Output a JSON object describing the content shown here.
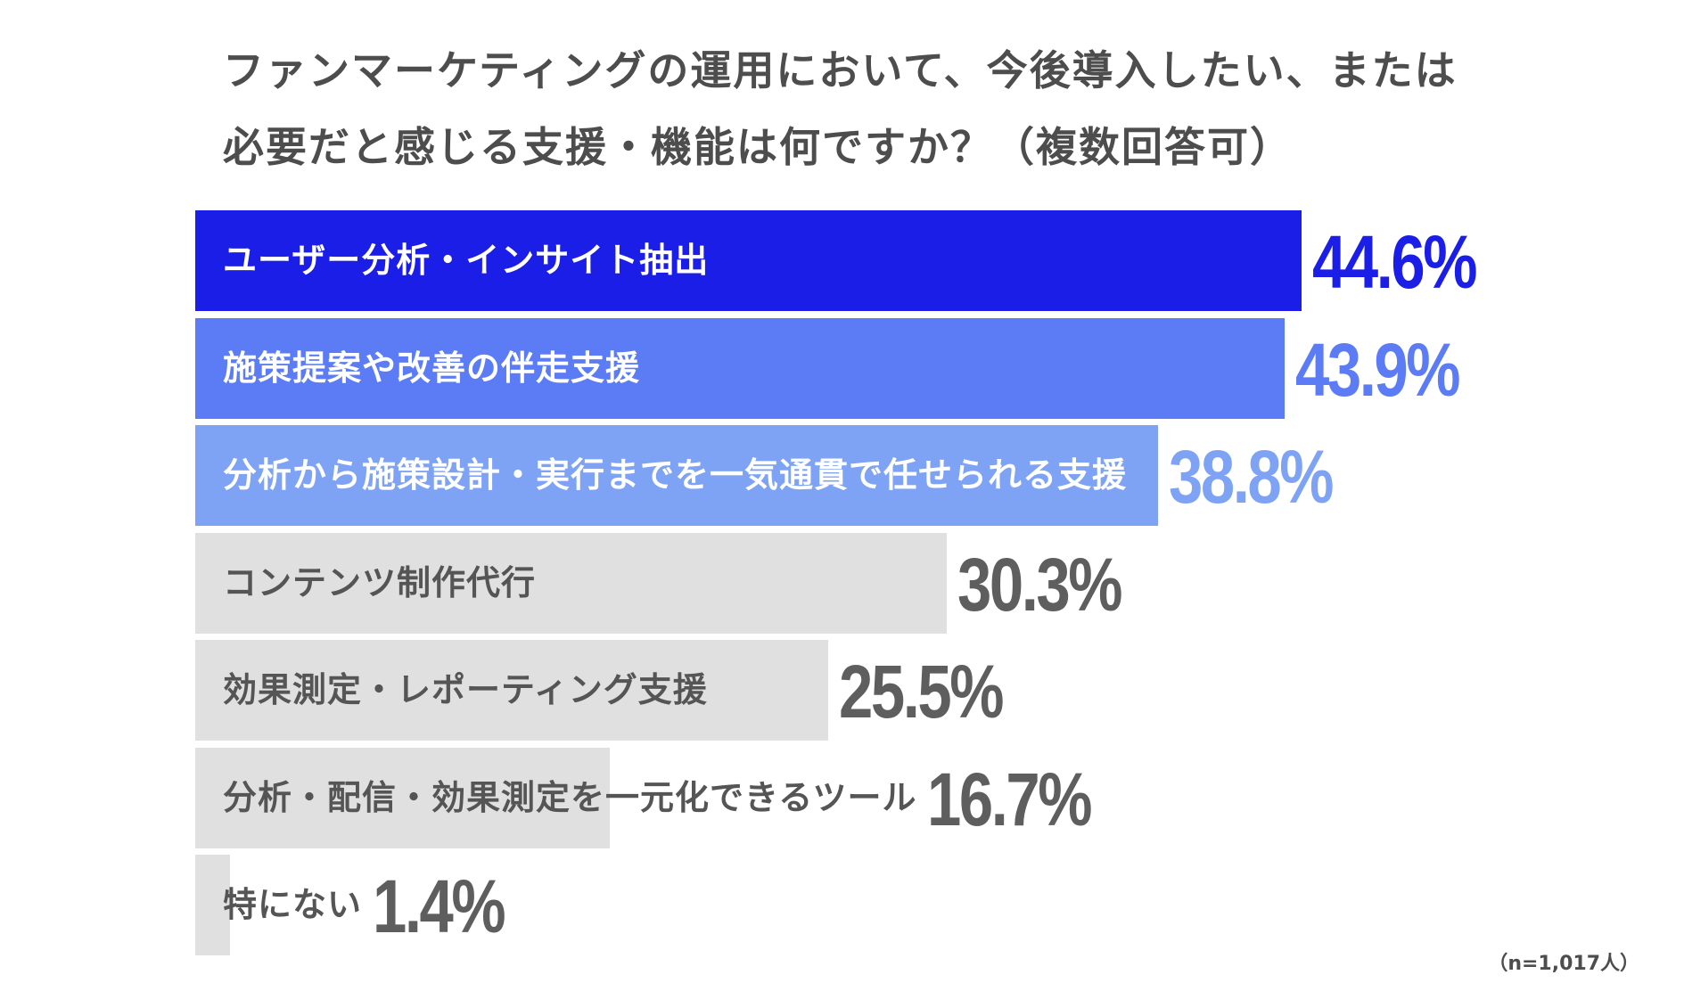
{
  "chart_data": {
    "type": "bar",
    "orientation": "horizontal",
    "title_lines": [
      "ファンマーケティングの運用において、今後導入したい、または",
      "必要だと感じる支援・機能は何ですか？（複数回答可）"
    ],
    "categories": [
      "ユーザー分析・インサイト抽出",
      "施策提案や改善の伴走支援",
      "分析から施策設計・実行までを一気通貫で任せられる支援",
      "コンテンツ制作代行",
      "効果測定・レポーティング支援",
      "分析・配信・効果測定を一元化できるツール",
      "特にない"
    ],
    "values": [
      44.6,
      43.9,
      38.8,
      30.3,
      25.5,
      16.7,
      1.4
    ],
    "value_labels": [
      "44.6%",
      "43.9%",
      "38.8%",
      "30.3%",
      "25.5%",
      "16.7%",
      "1.4%"
    ],
    "unit": "%",
    "xlim": [
      0,
      44.6
    ],
    "grid": false,
    "legend": "none",
    "bar_colors": [
      "#1a1ee6",
      "#5b7cf5",
      "#7ea3f5",
      "#e0e0e0",
      "#e0e0e0",
      "#e0e0e0",
      "#e0e0e0"
    ],
    "label_colors": [
      "#ffffff",
      "#ffffff",
      "#ffffff",
      "#555555",
      "#555555",
      "#555555",
      "#555555"
    ],
    "value_colors": [
      "#1a1ee6",
      "#5b7cf5",
      "#7ea3f5",
      "#5e5e5e",
      "#5e5e5e",
      "#5e5e5e",
      "#5e5e5e"
    ],
    "sample_size": "（n=1,017人）"
  }
}
